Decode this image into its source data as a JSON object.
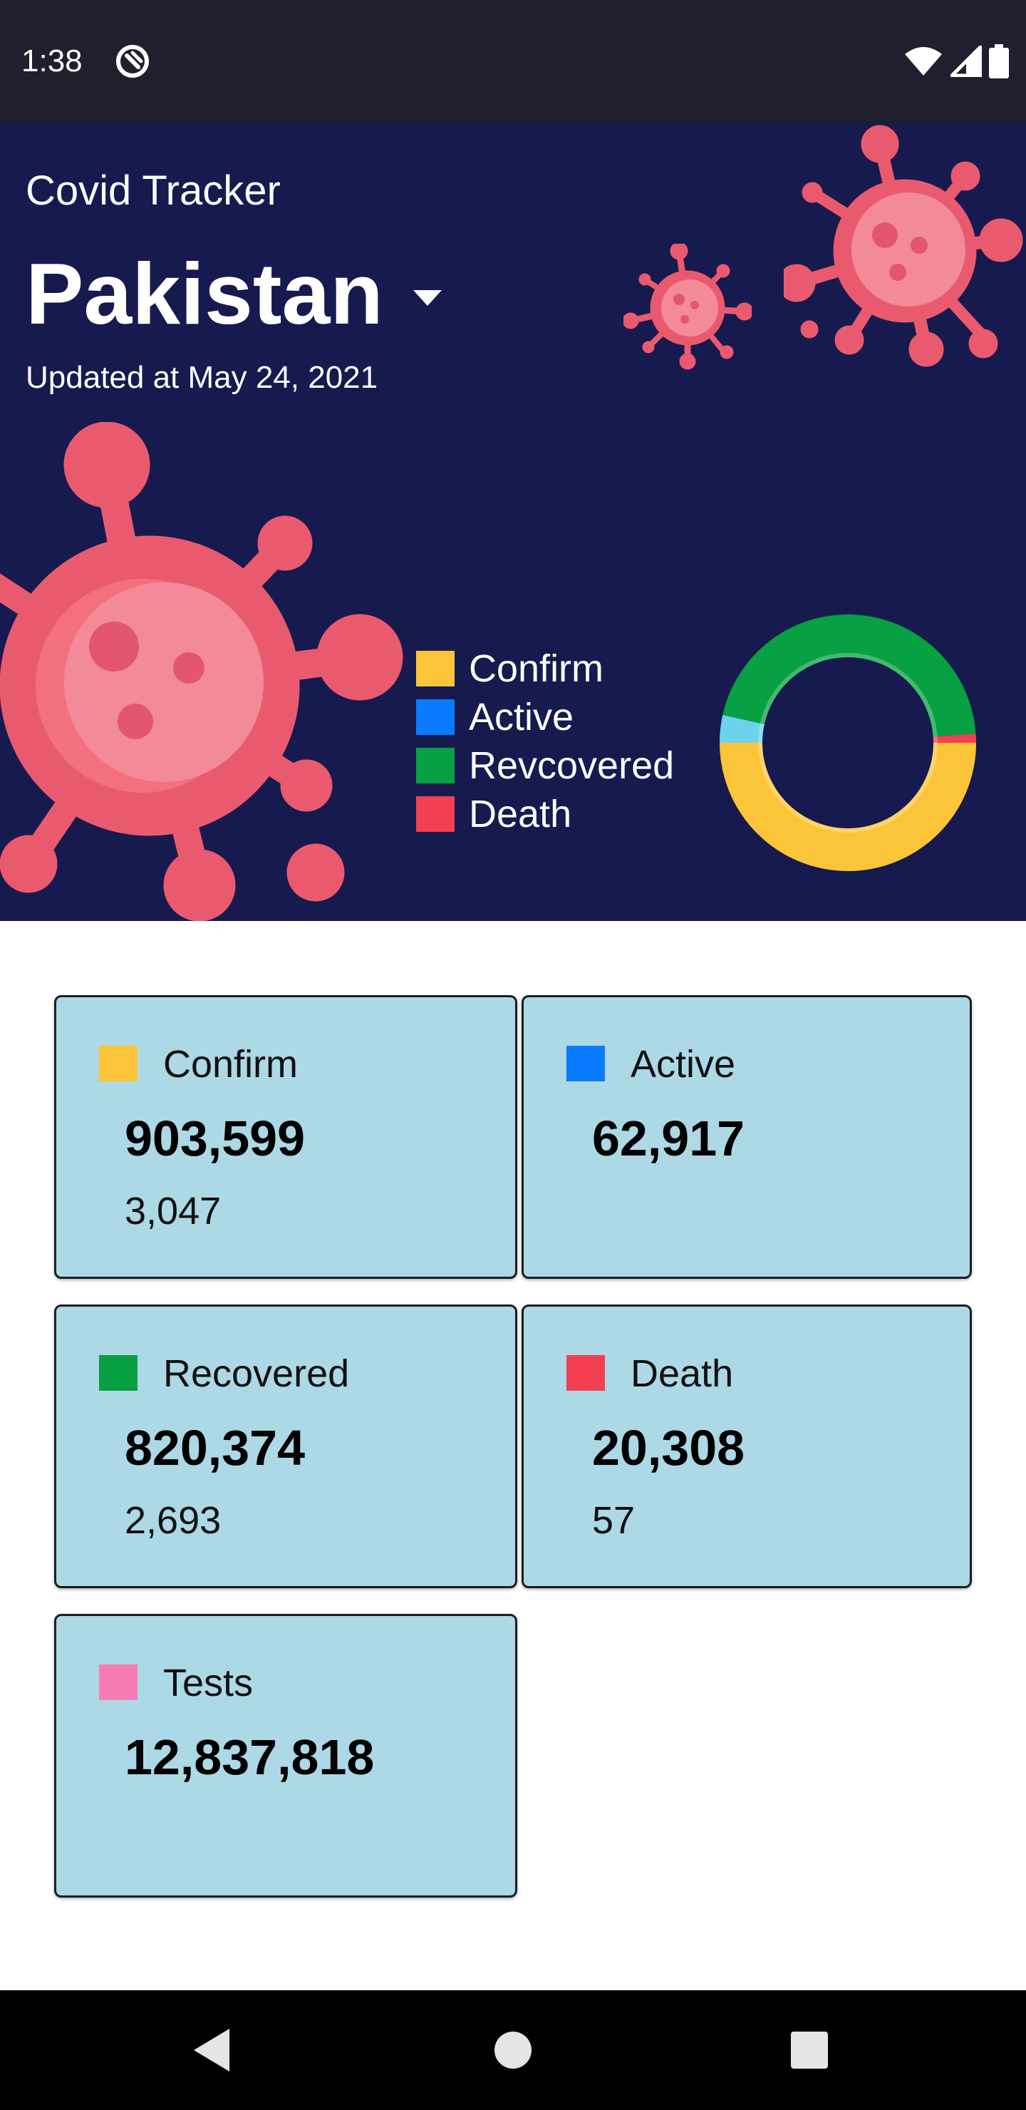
{
  "status_bar": {
    "time": "1:38",
    "icons": [
      "app-notification-icon",
      "wifi-icon",
      "signal-icon",
      "battery-icon"
    ]
  },
  "header": {
    "app_title": "Covid Tracker",
    "country": "Pakistan",
    "updated": "Updated at May 24, 2021",
    "background": "#161a4e",
    "virus_color": "#ea5a6f"
  },
  "legend": {
    "items": [
      {
        "label": "Confirm",
        "color": "#fcc438"
      },
      {
        "label": "Active",
        "color": "#0a7bff"
      },
      {
        "label": "Revcovered",
        "color": "#07a043"
      },
      {
        "label": "Death",
        "color": "#f43f53"
      }
    ]
  },
  "chart_data": {
    "type": "pie",
    "donut": true,
    "categories": [
      "Confirm",
      "Active",
      "Recovered",
      "Death"
    ],
    "values": [
      903599,
      62917,
      820374,
      20308
    ],
    "colors": [
      "#fcc438",
      "#6dd3ec",
      "#07a043",
      "#f43f53"
    ]
  },
  "cards": [
    {
      "label": "Confirm",
      "value": "903,599",
      "delta": "3,047",
      "color": "#fcc438"
    },
    {
      "label": "Active",
      "value": "62,917",
      "delta": "",
      "color": "#0a7bff"
    },
    {
      "label": "Recovered",
      "value": "820,374",
      "delta": "2,693",
      "color": "#07a043"
    },
    {
      "label": "Death",
      "value": "20,308",
      "delta": "57",
      "color": "#f43f53"
    },
    {
      "label": "Tests",
      "value": "12,837,818",
      "delta": "",
      "color": "#f77bb5"
    }
  ],
  "nav_bar": {
    "buttons": [
      "back-icon",
      "home-icon",
      "recents-icon"
    ]
  }
}
